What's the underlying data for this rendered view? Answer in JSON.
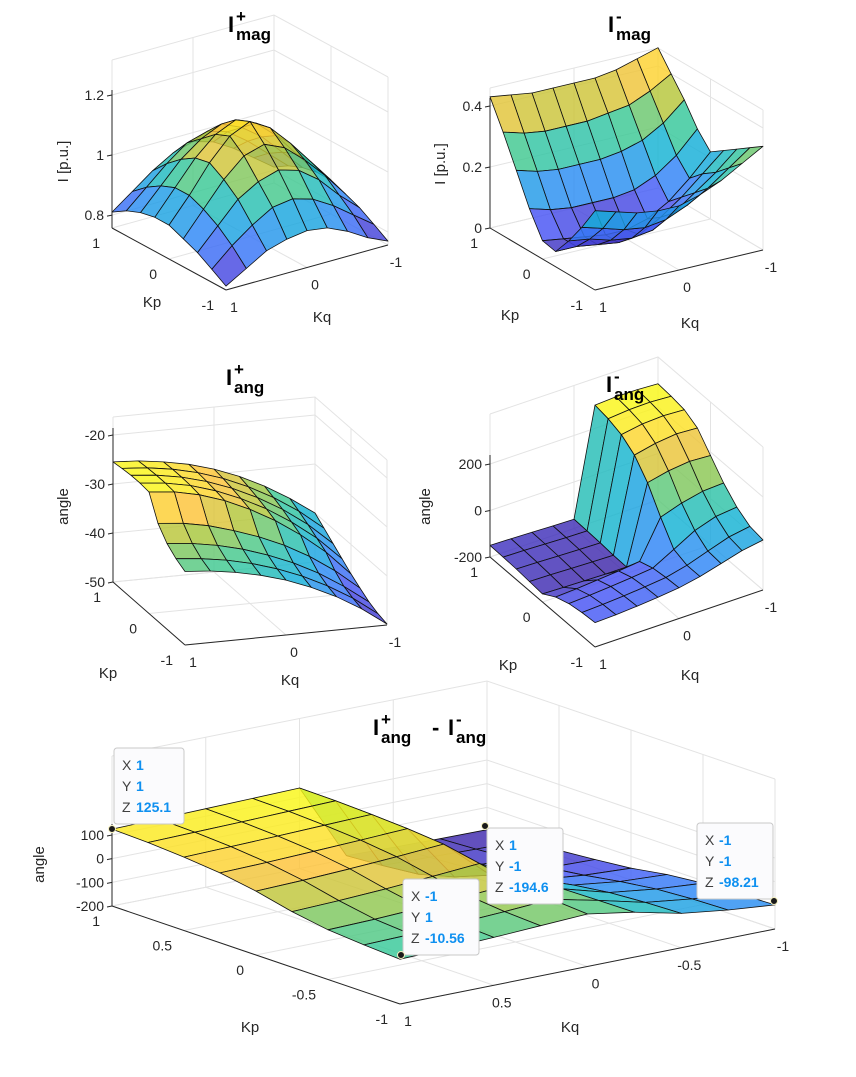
{
  "figure": {
    "colormap": "parula",
    "colors": {
      "tip_value": "#0e90f0",
      "tip_key": "#404040",
      "grid": "#e3e3e3",
      "axis": "#262626"
    }
  },
  "chart_data": [
    {
      "id": "iplus-mag",
      "type": "surface",
      "title": {
        "base": "I",
        "sup": "+",
        "sub": "mag"
      },
      "xlabel": "Kq",
      "ylabel": "Kp",
      "zlabel": "I [p.u.]",
      "xlim": [
        -1,
        1
      ],
      "ylim": [
        -1,
        1
      ],
      "zlim": [
        0.75,
        1.2
      ],
      "xticks": [
        1,
        0,
        -1
      ],
      "xtick_labels": [
        "1",
        "0",
        "-1"
      ],
      "yticks": [
        1,
        0,
        -1
      ],
      "ytick_labels": [
        "1",
        "0",
        "-1"
      ],
      "zticks": [
        0.8,
        1,
        1.2
      ],
      "ztick_labels": [
        "0.8",
        "1",
        "1.2"
      ],
      "grid": true,
      "kq": [
        1,
        0.75,
        0.5,
        0.25,
        0,
        -0.25,
        -0.5,
        -0.75,
        -1
      ],
      "kp": [
        1,
        0.75,
        0.5,
        0.25,
        0,
        -0.25,
        -0.5,
        -0.75,
        -1
      ],
      "z": [
        [
          0.81,
          0.86,
          0.91,
          0.95,
          0.97,
          0.95,
          0.91,
          0.86,
          0.81
        ],
        [
          0.84,
          0.9,
          0.96,
          1.01,
          1.03,
          1.01,
          0.96,
          0.9,
          0.84
        ],
        [
          0.86,
          0.93,
          1.0,
          1.05,
          1.08,
          1.05,
          1.0,
          0.93,
          0.86
        ],
        [
          0.87,
          0.95,
          1.03,
          1.09,
          1.12,
          1.09,
          1.03,
          0.95,
          0.87
        ],
        [
          0.87,
          0.95,
          1.04,
          1.11,
          1.14,
          1.1,
          1.03,
          0.95,
          0.87
        ],
        [
          0.85,
          0.93,
          1.01,
          1.07,
          1.09,
          1.06,
          1.0,
          0.93,
          0.85
        ],
        [
          0.83,
          0.9,
          0.97,
          1.01,
          1.03,
          1.01,
          0.96,
          0.89,
          0.83
        ],
        [
          0.8,
          0.86,
          0.91,
          0.95,
          0.96,
          0.94,
          0.9,
          0.85,
          0.8
        ],
        [
          0.77,
          0.81,
          0.85,
          0.87,
          0.88,
          0.87,
          0.84,
          0.8,
          0.77
        ]
      ]
    },
    {
      "id": "iminus-mag",
      "type": "surface",
      "title": {
        "base": "I",
        "sup": "-",
        "sub": "mag"
      },
      "xlabel": "Kq",
      "ylabel": "Kp",
      "zlabel": "I [p.u.]",
      "xlim": [
        -1,
        1
      ],
      "ylim": [
        -1,
        1
      ],
      "zlim": [
        0,
        0.45
      ],
      "xticks": [
        1,
        0,
        -1
      ],
      "xtick_labels": [
        "1",
        "0",
        "-1"
      ],
      "yticks": [
        1,
        0,
        -1
      ],
      "ytick_labels": [
        "1",
        "0",
        "-1"
      ],
      "zticks": [
        0,
        0.2,
        0.4
      ],
      "ztick_labels": [
        "0",
        "0.2",
        "0.4"
      ],
      "grid": true,
      "kq": [
        1,
        0.75,
        0.5,
        0.25,
        0,
        -0.25,
        -0.5,
        -0.75,
        -1
      ],
      "kp": [
        1,
        0.75,
        0.5,
        0.25,
        0,
        -0.25,
        -0.5,
        -0.75,
        -1
      ],
      "z": [
        [
          0.43,
          0.42,
          0.41,
          0.41,
          0.41,
          0.41,
          0.42,
          0.44,
          0.46
        ],
        [
          0.34,
          0.32,
          0.31,
          0.31,
          0.31,
          0.32,
          0.33,
          0.36,
          0.4
        ],
        [
          0.24,
          0.22,
          0.21,
          0.21,
          0.21,
          0.22,
          0.24,
          0.28,
          0.34
        ],
        [
          0.14,
          0.12,
          0.11,
          0.11,
          0.11,
          0.12,
          0.15,
          0.2,
          0.27
        ],
        [
          0.06,
          0.05,
          0.04,
          0.03,
          0.03,
          0.05,
          0.09,
          0.15,
          0.22
        ],
        [
          0.05,
          0.05,
          0.04,
          0.03,
          0.04,
          0.08,
          0.13,
          0.19,
          0.25
        ],
        [
          0.11,
          0.1,
          0.08,
          0.07,
          0.08,
          0.12,
          0.17,
          0.22,
          0.28
        ],
        [
          0.18,
          0.16,
          0.14,
          0.13,
          0.14,
          0.17,
          0.21,
          0.26,
          0.31
        ],
        [
          0.26,
          0.24,
          0.22,
          0.21,
          0.21,
          0.23,
          0.26,
          0.3,
          0.34
        ]
      ]
    },
    {
      "id": "iplus-ang",
      "type": "surface",
      "title": {
        "base": "I",
        "sup": "+",
        "sub": "ang"
      },
      "xlabel": "Kq",
      "ylabel": "Kp",
      "zlabel": "angle",
      "xlim": [
        -1,
        1
      ],
      "ylim": [
        -1,
        1
      ],
      "zlim": [
        -50,
        -20
      ],
      "xticks": [
        1,
        0,
        -1
      ],
      "xtick_labels": [
        "1",
        "0",
        "-1"
      ],
      "yticks": [
        1,
        0,
        -1
      ],
      "ytick_labels": [
        "1",
        "0",
        "-1"
      ],
      "zticks": [
        -20,
        -30,
        -40,
        -50
      ],
      "ztick_labels": [
        "-20",
        "-30",
        "-40",
        "-50"
      ],
      "grid": true,
      "kq": [
        1,
        0.75,
        0.5,
        0.25,
        0,
        -0.25,
        -0.5,
        -0.75,
        -1
      ],
      "kp": [
        1,
        0.75,
        0.5,
        0.25,
        0,
        -0.25,
        -0.5,
        -0.75,
        -1
      ],
      "z": [
        [
          -25.5,
          -25.8,
          -26.5,
          -27.5,
          -29.0,
          -31.0,
          -33.5,
          -36.5,
          -40.0
        ],
        [
          -25.2,
          -25.6,
          -26.4,
          -27.6,
          -29.3,
          -31.5,
          -34.2,
          -37.5,
          -41.5
        ],
        [
          -25.0,
          -25.5,
          -26.4,
          -27.8,
          -29.7,
          -32.1,
          -35.0,
          -38.6,
          -43.0
        ],
        [
          -25.0,
          -25.5,
          -26.5,
          -28.1,
          -30.2,
          -32.8,
          -36.0,
          -39.8,
          -44.5
        ],
        [
          -25.2,
          -25.7,
          -26.8,
          -28.5,
          -30.8,
          -33.6,
          -37.0,
          -41.0,
          -46.0
        ],
        [
          -30.0,
          -30.5,
          -31.5,
          -33.0,
          -34.8,
          -37.0,
          -39.8,
          -43.2,
          -47.3
        ],
        [
          -32.5,
          -33.0,
          -33.9,
          -35.2,
          -36.9,
          -39.0,
          -41.6,
          -44.8,
          -48.5
        ],
        [
          -34.0,
          -34.5,
          -35.3,
          -36.5,
          -38.1,
          -40.1,
          -42.6,
          -45.6,
          -49.3
        ],
        [
          -35.0,
          -35.4,
          -36.2,
          -37.3,
          -38.8,
          -40.8,
          -43.2,
          -46.2,
          -49.8
        ]
      ]
    },
    {
      "id": "iminus-ang",
      "type": "surface",
      "title": {
        "base": "I",
        "sup": "-",
        "sub": "ang"
      },
      "xlabel": "Kq",
      "ylabel": "Kp",
      "zlabel": "angle",
      "xlim": [
        -1,
        1
      ],
      "ylim": [
        -1,
        1
      ],
      "zlim": [
        -220,
        330
      ],
      "xticks": [
        1,
        0,
        -1
      ],
      "xtick_labels": [
        "1",
        "0",
        "-1"
      ],
      "yticks": [
        1,
        0,
        -1
      ],
      "ytick_labels": [
        "1",
        "0",
        "-1"
      ],
      "zticks": [
        200,
        0,
        -200
      ],
      "ztick_labels": [
        "200",
        "0",
        "-200"
      ],
      "grid": true,
      "kq": [
        1,
        0.75,
        0.5,
        0.25,
        0,
        -0.25,
        -0.5,
        -0.75,
        -1
      ],
      "kp": [
        1,
        0.75,
        0.5,
        0.25,
        0,
        -0.25,
        -0.5,
        -0.75,
        -1
      ],
      "z": [
        [
          -150,
          -152,
          -155,
          -158,
          -160,
          300,
          305,
          305,
          300
        ],
        [
          -152,
          -154,
          -157,
          -160,
          -162,
          290,
          298,
          300,
          295
        ],
        [
          -155,
          -157,
          -160,
          -163,
          -165,
          270,
          285,
          290,
          285
        ],
        [
          -160,
          -162,
          -165,
          -168,
          -170,
          230,
          250,
          260,
          255
        ],
        [
          -165,
          -168,
          -170,
          -172,
          -172,
          160,
          180,
          190,
          185
        ],
        [
          -130,
          -125,
          -118,
          -110,
          -100,
          60,
          90,
          110,
          115
        ],
        [
          -110,
          -105,
          -98,
          -90,
          -80,
          -30,
          20,
          50,
          60
        ],
        [
          -100,
          -96,
          -90,
          -82,
          -72,
          -50,
          -20,
          10,
          25
        ],
        [
          -95,
          -92,
          -86,
          -78,
          -68,
          -50,
          -25,
          0,
          15
        ]
      ]
    },
    {
      "id": "iang-diff",
      "type": "surface",
      "title": {
        "base": "I",
        "sup": "+",
        "sub": "ang",
        "base2": "I",
        "sup2": "-",
        "sub2": "ang",
        "op": "-"
      },
      "xlabel": "Kq",
      "ylabel": "Kp",
      "zlabel": "angle",
      "xlim": [
        -1,
        1
      ],
      "ylim": [
        -1,
        1
      ],
      "zlim": [
        -220,
        350
      ],
      "xticks": [
        1,
        0.5,
        0,
        -0.5,
        -1
      ],
      "xtick_labels": [
        "1",
        "0.5",
        "0",
        "-0.5",
        "-1"
      ],
      "yticks": [
        1,
        0.5,
        0,
        -0.5,
        -1
      ],
      "ytick_labels": [
        "1",
        "0.5",
        "0",
        "-0.5",
        "-1"
      ],
      "zticks": [
        100,
        0,
        -100,
        -200
      ],
      "ztick_labels": [
        "100",
        "0",
        "-100",
        "-200"
      ],
      "grid": true,
      "kq": [
        1,
        0.75,
        0.5,
        0.25,
        0,
        -0.25,
        -0.5,
        -0.75,
        -1
      ],
      "kp": [
        1,
        0.75,
        0.5,
        0.25,
        0,
        -0.25,
        -0.5,
        -0.75,
        -1
      ],
      "z": [
        [
          125.1,
          128,
          132,
          136,
          140,
          -185,
          -190,
          -193,
          -194.6
        ],
        [
          120,
          124,
          128,
          133,
          138,
          -175,
          -180,
          -185,
          -188
        ],
        [
          110,
          115,
          120,
          126,
          132,
          -160,
          -170,
          -175,
          -178
        ],
        [
          95,
          100,
          107,
          115,
          124,
          -120,
          -150,
          -160,
          -165
        ],
        [
          70,
          76,
          85,
          96,
          110,
          -60,
          -120,
          -140,
          -150
        ],
        [
          35,
          42,
          52,
          65,
          80,
          -20,
          -90,
          -115,
          -125
        ],
        [
          10,
          15,
          24,
          35,
          50,
          -15,
          -70,
          -95,
          -110
        ],
        [
          -2,
          3,
          10,
          20,
          32,
          -12,
          -60,
          -85,
          -103
        ],
        [
          -10.56,
          -6,
          2,
          12,
          22,
          -10,
          -55,
          -80,
          -98.21
        ]
      ]
    }
  ],
  "data_tips": [
    {
      "plot": "iang-diff",
      "x_label": "X",
      "x": "1",
      "y_label": "Y",
      "y": "1",
      "z_label": "Z",
      "z": "125.1"
    },
    {
      "plot": "iang-diff",
      "x_label": "X",
      "x": "-1",
      "y_label": "Y",
      "y": "1",
      "z_label": "Z",
      "z": "-10.56"
    },
    {
      "plot": "iang-diff",
      "x_label": "X",
      "x": "1",
      "y_label": "Y",
      "y": "-1",
      "z_label": "Z",
      "z": "-194.6"
    },
    {
      "plot": "iang-diff",
      "x_label": "X",
      "x": "-1",
      "y_label": "Y",
      "y": "-1",
      "z_label": "Z",
      "z": "-98.21"
    }
  ]
}
